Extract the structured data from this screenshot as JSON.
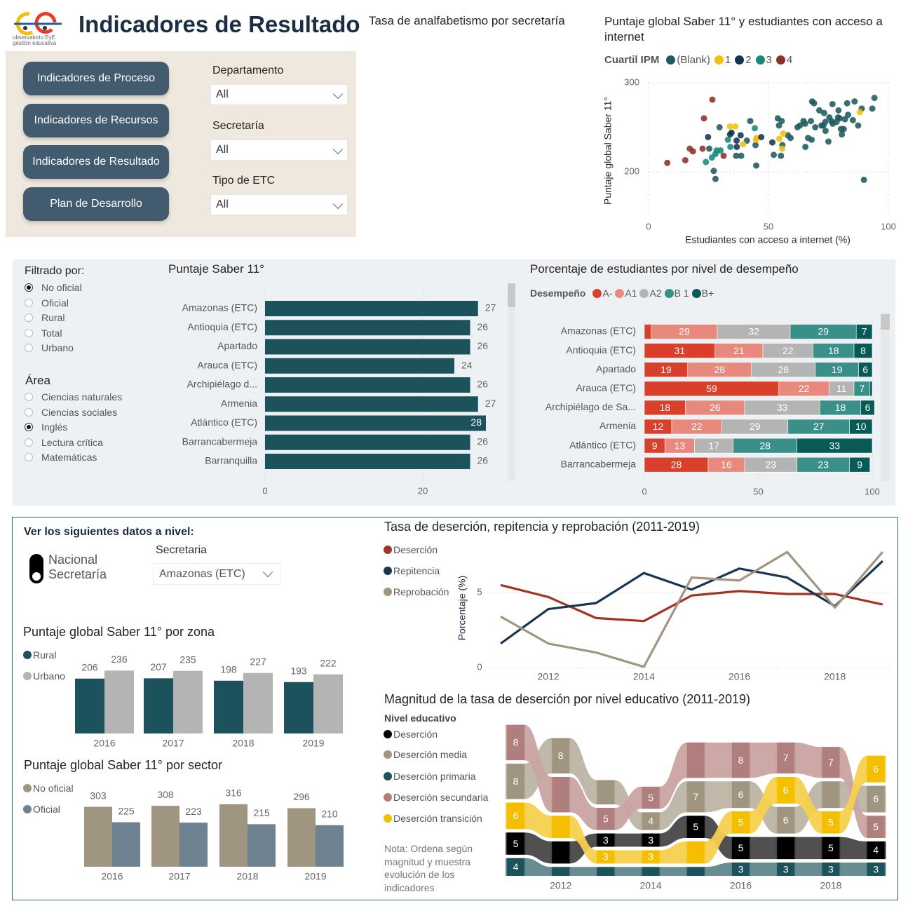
{
  "header": {
    "title": "Indicadores de Resultado",
    "logo_line1": "observatorio EyE",
    "logo_line2": "gestión educativa"
  },
  "nav": {
    "buttons": [
      "Indicadores de Proceso",
      "Indicadores de Recursos",
      "Indicadores de Resultado",
      "Plan de Desarrollo"
    ]
  },
  "filters": [
    {
      "label": "Departamento",
      "value": "All"
    },
    {
      "label": "Secretaría",
      "value": "All"
    },
    {
      "label": "Tipo de ETC",
      "value": "All"
    }
  ],
  "analfabetismo": {
    "title": "Tasa de analfabetismo por secretaría"
  },
  "filter_panel": {
    "filtered_by_label": "Filtrado por:",
    "filtered_by_options": [
      {
        "label": "No oficial",
        "selected": true
      },
      {
        "label": "Oficial",
        "selected": false
      },
      {
        "label": "Rural",
        "selected": false
      },
      {
        "label": "Total",
        "selected": false
      },
      {
        "label": "Urbano",
        "selected": false
      }
    ],
    "area_label": "Área",
    "area_options": [
      {
        "label": "Ciencias naturales",
        "selected": false
      },
      {
        "label": "Ciencias sociales",
        "selected": false
      },
      {
        "label": "Inglés",
        "selected": true
      },
      {
        "label": "Lectura crítica",
        "selected": false
      },
      {
        "label": "Matemáticas",
        "selected": false
      }
    ]
  },
  "level_selector": {
    "heading": "Ver los siguientes datos a nivel:",
    "toggle_option_1": "Nacional",
    "toggle_option_2": "Secretaría",
    "toggle_state": "Secretaría",
    "secretaria_label": "Secretaria",
    "secretaria_value": "Amazonas (ETC)"
  },
  "ribbon_note": [
    "Nota: Ordena según",
    "magnitud y muestra",
    "evolución de los",
    "indicadores"
  ],
  "chart_data": [
    {
      "id": "scatter",
      "type": "scatter",
      "title_lines": [
        "Puntaje global Saber 11° y estudiantes con acceso a",
        "internet"
      ],
      "xlabel": "Estudiantes con acceso a internet (%)",
      "ylabel": "Puntaje global Saber 11°",
      "xlim": [
        0,
        100
      ],
      "ylim": [
        150,
        300
      ],
      "xticks": [
        0,
        50,
        100
      ],
      "yticks": [
        200,
        300
      ],
      "grid": true,
      "legend_title": "Cuartil IPM",
      "legend_placement": "top",
      "series": [
        {
          "name": "(Blank)",
          "color": "#1e5a5f",
          "points": [
            [
              25.3,
              226
            ],
            [
              29.6,
              250
            ],
            [
              27.2,
              201
            ],
            [
              27.9,
              192
            ],
            [
              36.5,
              218
            ],
            [
              38.6,
              218
            ],
            [
              41,
              235
            ],
            [
              42.4,
              257
            ],
            [
              44.6,
              230
            ],
            [
              44.9,
              207
            ],
            [
              52.2,
              219
            ],
            [
              53.9,
              260
            ],
            [
              55.5,
              257
            ],
            [
              54.4,
              252
            ],
            [
              55.2,
              218
            ],
            [
              55.8,
              230
            ],
            [
              58.1,
              241
            ],
            [
              59.2,
              238
            ],
            [
              62.1,
              250
            ],
            [
              63.1,
              252
            ],
            [
              64.6,
              257
            ],
            [
              65.3,
              254
            ],
            [
              65.4,
              228
            ],
            [
              66.5,
              238
            ],
            [
              68,
              236
            ],
            [
              67.7,
              257
            ],
            [
              68.2,
              279
            ],
            [
              69,
              277
            ],
            [
              69.5,
              250
            ],
            [
              71.2,
              269
            ],
            [
              72.1,
              252
            ],
            [
              73.2,
              266
            ],
            [
              72.9,
              252
            ],
            [
              73.7,
              256
            ],
            [
              73.8,
              246
            ],
            [
              75,
              234
            ],
            [
              75.4,
              261
            ],
            [
              76.7,
              276
            ],
            [
              76.3,
              257
            ],
            [
              76.8,
              254
            ],
            [
              78.4,
              256
            ],
            [
              79.2,
              269
            ],
            [
              79,
              261
            ],
            [
              79.7,
              260
            ],
            [
              80.2,
              248
            ],
            [
              80.6,
              242
            ],
            [
              81.4,
              248
            ],
            [
              81.9,
              259
            ],
            [
              82.8,
              277
            ],
            [
              83.2,
              264
            ],
            [
              85.2,
              258
            ],
            [
              85.9,
              279
            ],
            [
              87.4,
              252
            ],
            [
              88.9,
              271
            ],
            [
              89.8,
              191
            ],
            [
              93.3,
              271
            ],
            [
              94.2,
              283
            ]
          ]
        },
        {
          "name": "1",
          "color": "#f2bf0c",
          "points": [
            [
              33.9,
              251
            ],
            [
              36.2,
              251
            ],
            [
              39.4,
              231
            ],
            [
              44.8,
              236
            ],
            [
              45,
              238
            ],
            [
              54.5,
              237
            ],
            [
              56.1,
              243
            ],
            [
              55.7,
              226
            ],
            [
              88.1,
              267
            ]
          ]
        },
        {
          "name": "2",
          "color": "#14334f",
          "points": [
            [
              24.8,
              239
            ],
            [
              34,
              242
            ],
            [
              34.6,
              244
            ],
            [
              38.4,
              241
            ],
            [
              36.7,
              235
            ],
            [
              36.8,
              228
            ],
            [
              47,
              239
            ],
            [
              51.6,
              233
            ]
          ]
        },
        {
          "name": "3",
          "color": "#168a7a",
          "points": [
            [
              23.9,
              211
            ],
            [
              26.4,
              216
            ],
            [
              27.9,
              220
            ],
            [
              28.4,
              224
            ],
            [
              30,
              224
            ],
            [
              33.1,
              236
            ],
            [
              34.1,
              228
            ],
            [
              44.3,
              249
            ]
          ]
        },
        {
          "name": "4",
          "color": "#8b3228",
          "points": [
            [
              26.6,
              281
            ],
            [
              23.1,
              260
            ],
            [
              7.8,
              210
            ],
            [
              15.3,
              213
            ],
            [
              17.2,
              226
            ],
            [
              18.5,
              223
            ],
            [
              22.5,
              226
            ],
            [
              31.3,
              218
            ]
          ]
        }
      ]
    },
    {
      "id": "saber",
      "type": "bar",
      "orientation": "horizontal",
      "title": "Puntaje Saber 11°",
      "categories": [
        "Amazonas (ETC)",
        "Antioquia (ETC)",
        "Apartado",
        "Arauca (ETC)",
        "Archipiélago d...",
        "Armenia",
        "Atlántico (ETC)",
        "Barrancabermeja",
        "Barranquilla"
      ],
      "values": [
        27,
        26,
        26,
        24,
        26,
        27,
        28,
        26,
        26
      ],
      "xticks": [
        0,
        20
      ],
      "color": "#1b525c"
    },
    {
      "id": "desempeno",
      "type": "bar",
      "orientation": "horizontal",
      "stacked": true,
      "title": "Porcentaje de estudiantes por nivel de desempeño",
      "legend_title": "Desempeño",
      "categories": [
        "Amazonas (ETC)",
        "Antioquia (ETC)",
        "Apartado",
        "Arauca (ETC)",
        "Archipiélago de Sa...",
        "Armenia",
        "Atlántico (ETC)",
        "Barrancabermeja"
      ],
      "xticks": [
        0,
        50,
        100
      ],
      "xlim": [
        0,
        100
      ],
      "series": [
        {
          "name": "A-",
          "color": "#d9402b",
          "values": [
            3,
            31,
            19,
            59,
            18,
            12,
            9,
            28
          ],
          "labels": [
            null,
            31,
            19,
            59,
            18,
            12,
            9,
            28
          ]
        },
        {
          "name": "A1",
          "color": "#e8897d",
          "values": [
            29,
            21,
            28,
            22,
            26,
            22,
            13,
            16
          ],
          "labels": [
            29,
            21,
            28,
            22,
            26,
            22,
            13,
            16
          ]
        },
        {
          "name": "A2",
          "color": "#b4b4b4",
          "values": [
            32,
            22,
            28,
            11,
            33,
            29,
            17,
            23
          ],
          "labels": [
            32,
            22,
            28,
            11,
            33,
            29,
            17,
            23
          ]
        },
        {
          "name": "B 1",
          "color": "#3a9089",
          "values": [
            29,
            18,
            19,
            7,
            18,
            27,
            28,
            23
          ],
          "labels": [
            29,
            18,
            19,
            7,
            18,
            27,
            28,
            23
          ]
        },
        {
          "name": "B+",
          "color": "#075a56",
          "values": [
            7,
            8,
            6,
            1,
            6,
            10,
            33,
            9
          ],
          "labels": [
            7,
            8,
            6,
            null,
            6,
            10,
            33,
            9
          ]
        }
      ]
    },
    {
      "id": "zona",
      "type": "bar",
      "title": "Puntaje global Saber 11° por zona",
      "categories": [
        "2016",
        "2017",
        "2018",
        "2019"
      ],
      "series": [
        {
          "name": "Rural",
          "color": "#1b525c",
          "values": [
            206,
            207,
            198,
            193
          ]
        },
        {
          "name": "Urbano",
          "color": "#b4b4b4",
          "values": [
            236,
            235,
            227,
            222
          ]
        }
      ]
    },
    {
      "id": "sector",
      "type": "bar",
      "title": "Puntaje global Saber 11° por sector",
      "categories": [
        "2016",
        "2017",
        "2018",
        "2019"
      ],
      "series": [
        {
          "name": "No oficial",
          "color": "#a09580",
          "values": [
            303,
            308,
            316,
            296
          ]
        },
        {
          "name": "Oficial",
          "color": "#6f8291",
          "values": [
            225,
            223,
            215,
            210
          ]
        }
      ]
    },
    {
      "id": "tasas",
      "type": "line",
      "title": "Tasa de deserción, repitencia y reprobación (2011-2019)",
      "ylabel": "Porcentaje (%)",
      "x": [
        2011,
        2012,
        2013,
        2014,
        2015,
        2016,
        2017,
        2018,
        2019
      ],
      "xticks": [
        2012,
        2014,
        2016,
        2018
      ],
      "yticks": [
        0,
        5
      ],
      "grid": true,
      "legend_placement": "left",
      "series": [
        {
          "name": "Deserción",
          "color": "#a33322",
          "values": [
            5.5,
            4.7,
            3.3,
            3.1,
            4.8,
            5.1,
            4.9,
            4.9,
            4.2
          ]
        },
        {
          "name": "Repitencia",
          "color": "#1a3550",
          "values": [
            1.6,
            3.9,
            4.3,
            6.3,
            5.2,
            6.6,
            6.0,
            4.1,
            7.1
          ]
        },
        {
          "name": "Reprobación",
          "color": "#a09580",
          "values": [
            3.4,
            1.6,
            1.0,
            0.05,
            6.0,
            5.8,
            7.7,
            4.0,
            7.7
          ]
        }
      ]
    },
    {
      "id": "ribbon",
      "type": "area",
      "subtype": "ribbon",
      "title": "Magnitud de la tasa de deserción por nivel educativo (2011-2019)",
      "legend_title": "Nivel educativo",
      "x": [
        2011,
        2012,
        2013,
        2014,
        2015,
        2016,
        2017,
        2018,
        2019
      ],
      "xticks": [
        2012,
        2014,
        2016,
        2018
      ],
      "series": [
        {
          "key": "des",
          "name": "Deserción",
          "color": "#000000",
          "ribbon": "#474747",
          "values": [
            5,
            5,
            3,
            3,
            5,
            5,
            5,
            5,
            4
          ],
          "labels": [
            5,
            null,
            3,
            3,
            5,
            5,
            null,
            5,
            4
          ]
        },
        {
          "key": "med",
          "name": "Deserción media",
          "color": "#a09580",
          "ribbon": "#bdb4a4",
          "values": [
            8,
            8,
            5.5,
            4,
            7,
            6,
            6,
            6,
            6
          ],
          "labels": [
            8,
            8,
            null,
            4,
            7,
            6,
            6,
            null,
            6
          ]
        },
        {
          "key": "pri",
          "name": "Deserción primaria",
          "color": "#1b525c",
          "ribbon": "#5f878c",
          "values": [
            4,
            2,
            2,
            2,
            2,
            3,
            3,
            3,
            3
          ],
          "labels": [
            4,
            null,
            null,
            null,
            null,
            3,
            3,
            3,
            3
          ]
        },
        {
          "key": "sec",
          "name": "Deserción secundaria",
          "color": "#b07f7d",
          "ribbon": "#c9a3a2",
          "values": [
            8,
            8,
            5,
            5,
            8,
            8,
            7,
            7,
            5
          ],
          "labels": [
            8,
            null,
            5,
            5,
            null,
            8,
            7,
            7,
            5
          ]
        },
        {
          "key": "tra",
          "name": "Deserción transición",
          "color": "#f4bf00",
          "ribbon": "#f6d04d",
          "values": [
            6,
            5,
            3,
            3,
            5,
            5,
            6,
            5,
            6
          ],
          "labels": [
            6,
            null,
            3,
            3,
            null,
            5,
            6,
            5,
            6
          ]
        }
      ],
      "rank_top_to_bottom": [
        [
          "sec",
          "med",
          "tra",
          "des",
          "pri"
        ],
        [
          "med",
          "sec",
          "tra",
          "des",
          "pri"
        ],
        [
          "med",
          "sec",
          "des",
          "tra",
          "pri"
        ],
        [
          "sec",
          "med",
          "des",
          "tra",
          "pri"
        ],
        [
          "sec",
          "med",
          "des",
          "tra",
          "pri"
        ],
        [
          "sec",
          "med",
          "tra",
          "des",
          "pri"
        ],
        [
          "sec",
          "tra",
          "med",
          "des",
          "pri"
        ],
        [
          "sec",
          "med",
          "tra",
          "des",
          "pri"
        ],
        [
          "tra",
          "med",
          "sec",
          "des",
          "pri"
        ]
      ]
    }
  ]
}
